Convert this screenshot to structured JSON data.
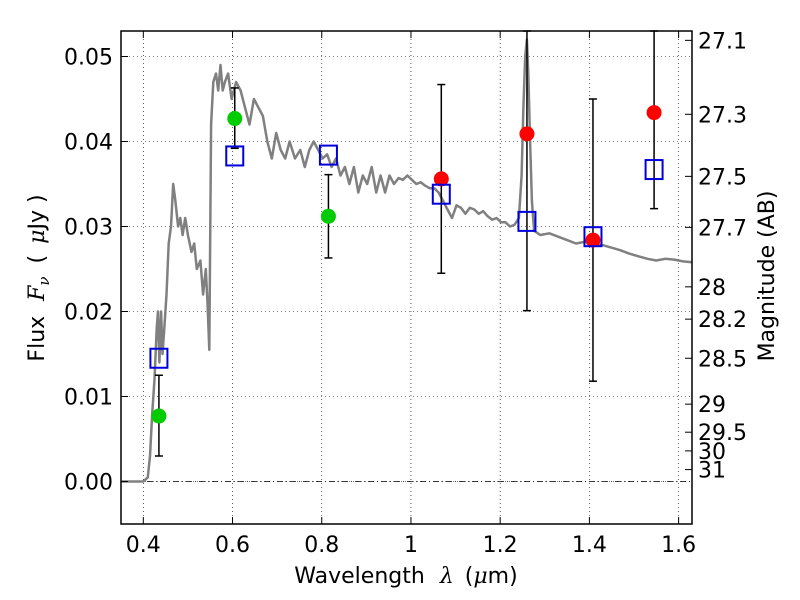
{
  "chart_data": {
    "type": "scatter",
    "xlabel": {
      "prefix": "Wavelength",
      "symbol": "λ",
      "unit_open": "(",
      "unit_mu": "μ",
      "unit_rest": "m)"
    },
    "ylabel": {
      "prefix": "Flux",
      "symbol": "F",
      "subscript": "ν",
      "unit_open": "(",
      "unit_mu": "μ",
      "unit_rest": "Jy )"
    },
    "y2label": "Magnitude (AB)",
    "xlim": [
      0.35,
      1.63
    ],
    "ylim": [
      -0.005,
      0.053
    ],
    "grid": true,
    "x_ticks": [
      {
        "value": 0.4,
        "label": "0.4"
      },
      {
        "value": 0.6,
        "label": "0.6"
      },
      {
        "value": 0.8,
        "label": "0.8"
      },
      {
        "value": 1.0,
        "label": "1"
      },
      {
        "value": 1.2,
        "label": "1.2"
      },
      {
        "value": 1.4,
        "label": "1.4"
      },
      {
        "value": 1.6,
        "label": "1.6"
      }
    ],
    "y_ticks": [
      {
        "value": 0.0,
        "label": "0.00"
      },
      {
        "value": 0.01,
        "label": "0.01"
      },
      {
        "value": 0.02,
        "label": "0.02"
      },
      {
        "value": 0.03,
        "label": "0.03"
      },
      {
        "value": 0.04,
        "label": "0.04"
      },
      {
        "value": 0.05,
        "label": "0.05"
      }
    ],
    "mag_ticks": [
      {
        "flux": 0.0519,
        "label": "27.1"
      },
      {
        "flux": 0.0432,
        "label": "27.3"
      },
      {
        "flux": 0.0359,
        "label": "27.5"
      },
      {
        "flux": 0.0299,
        "label": "27.7"
      },
      {
        "flux": 0.0229,
        "label": "28"
      },
      {
        "flux": 0.0191,
        "label": "28.2"
      },
      {
        "flux": 0.0145,
        "label": "28.5"
      },
      {
        "flux": 0.0091,
        "label": "29"
      },
      {
        "flux": 0.0058,
        "label": "29.5"
      },
      {
        "flux": 0.0036,
        "label": "30"
      },
      {
        "flux": 0.0014,
        "label": "31"
      }
    ],
    "zero_line": 0.0,
    "sed_model": {
      "color": "#808080",
      "points": [
        [
          0.35,
          0.0
        ],
        [
          0.4,
          0.0
        ],
        [
          0.41,
          0.0005
        ],
        [
          0.415,
          0.003
        ],
        [
          0.42,
          0.008
        ],
        [
          0.425,
          0.012
        ],
        [
          0.43,
          0.018
        ],
        [
          0.433,
          0.02
        ],
        [
          0.436,
          0.014
        ],
        [
          0.44,
          0.02
        ],
        [
          0.443,
          0.015
        ],
        [
          0.447,
          0.018
        ],
        [
          0.452,
          0.022
        ],
        [
          0.457,
          0.028
        ],
        [
          0.462,
          0.03
        ],
        [
          0.467,
          0.035
        ],
        [
          0.472,
          0.033
        ],
        [
          0.478,
          0.03
        ],
        [
          0.483,
          0.031
        ],
        [
          0.488,
          0.029
        ],
        [
          0.494,
          0.031
        ],
        [
          0.5,
          0.029
        ],
        [
          0.508,
          0.027
        ],
        [
          0.514,
          0.028
        ],
        [
          0.52,
          0.025
        ],
        [
          0.528,
          0.026
        ],
        [
          0.534,
          0.022
        ],
        [
          0.54,
          0.025
        ],
        [
          0.544,
          0.021
        ],
        [
          0.548,
          0.0155
        ],
        [
          0.552,
          0.042
        ],
        [
          0.557,
          0.047
        ],
        [
          0.563,
          0.048
        ],
        [
          0.568,
          0.046
        ],
        [
          0.573,
          0.049
        ],
        [
          0.578,
          0.046
        ],
        [
          0.583,
          0.047
        ],
        [
          0.59,
          0.048
        ],
        [
          0.598,
          0.045
        ],
        [
          0.608,
          0.047
        ],
        [
          0.618,
          0.046
        ],
        [
          0.628,
          0.044
        ],
        [
          0.638,
          0.042
        ],
        [
          0.648,
          0.045
        ],
        [
          0.658,
          0.044
        ],
        [
          0.668,
          0.043
        ],
        [
          0.678,
          0.04
        ],
        [
          0.688,
          0.038
        ],
        [
          0.698,
          0.041
        ],
        [
          0.708,
          0.039
        ],
        [
          0.718,
          0.038
        ],
        [
          0.728,
          0.04
        ],
        [
          0.74,
          0.038
        ],
        [
          0.752,
          0.039
        ],
        [
          0.762,
          0.037
        ],
        [
          0.772,
          0.039
        ],
        [
          0.782,
          0.04
        ],
        [
          0.792,
          0.039
        ],
        [
          0.802,
          0.038
        ],
        [
          0.812,
          0.0385
        ],
        [
          0.822,
          0.037
        ],
        [
          0.832,
          0.038
        ],
        [
          0.842,
          0.036
        ],
        [
          0.852,
          0.037
        ],
        [
          0.862,
          0.035
        ],
        [
          0.872,
          0.037
        ],
        [
          0.882,
          0.034
        ],
        [
          0.892,
          0.036
        ],
        [
          0.902,
          0.035
        ],
        [
          0.912,
          0.037
        ],
        [
          0.922,
          0.034
        ],
        [
          0.932,
          0.036
        ],
        [
          0.942,
          0.034
        ],
        [
          0.952,
          0.036
        ],
        [
          0.962,
          0.035
        ],
        [
          0.972,
          0.0357
        ],
        [
          0.982,
          0.0355
        ],
        [
          0.992,
          0.036
        ],
        [
          1.002,
          0.0355
        ],
        [
          1.012,
          0.035
        ],
        [
          1.022,
          0.0352
        ],
        [
          1.032,
          0.0348
        ],
        [
          1.042,
          0.0345
        ],
        [
          1.052,
          0.0345
        ],
        [
          1.062,
          0.034
        ],
        [
          1.072,
          0.033
        ],
        [
          1.082,
          0.032
        ],
        [
          1.092,
          0.031
        ],
        [
          1.102,
          0.0325
        ],
        [
          1.112,
          0.0322
        ],
        [
          1.122,
          0.0315
        ],
        [
          1.132,
          0.0322
        ],
        [
          1.142,
          0.032
        ],
        [
          1.152,
          0.0315
        ],
        [
          1.162,
          0.0318
        ],
        [
          1.172,
          0.0312
        ],
        [
          1.182,
          0.0308
        ],
        [
          1.192,
          0.031
        ],
        [
          1.202,
          0.0305
        ],
        [
          1.212,
          0.0305
        ],
        [
          1.222,
          0.03
        ],
        [
          1.232,
          0.0302
        ],
        [
          1.242,
          0.031
        ],
        [
          1.248,
          0.036
        ],
        [
          1.252,
          0.044
        ],
        [
          1.256,
          0.05
        ],
        [
          1.26,
          0.052
        ],
        [
          1.263,
          0.048
        ],
        [
          1.267,
          0.04
        ],
        [
          1.271,
          0.033
        ],
        [
          1.276,
          0.0295
        ],
        [
          1.29,
          0.029
        ],
        [
          1.31,
          0.0292
        ],
        [
          1.33,
          0.0288
        ],
        [
          1.35,
          0.0284
        ],
        [
          1.37,
          0.028
        ],
        [
          1.39,
          0.0282
        ],
        [
          1.41,
          0.028
        ],
        [
          1.43,
          0.0278
        ],
        [
          1.45,
          0.0275
        ],
        [
          1.47,
          0.0272
        ],
        [
          1.49,
          0.0268
        ],
        [
          1.51,
          0.0265
        ],
        [
          1.53,
          0.0262
        ],
        [
          1.55,
          0.026
        ],
        [
          1.57,
          0.0262
        ],
        [
          1.59,
          0.0261
        ],
        [
          1.61,
          0.0259
        ],
        [
          1.63,
          0.0258
        ]
      ]
    },
    "series": [
      {
        "marker": "circle",
        "color": "#00cc00",
        "points": [
          {
            "x": 0.435,
            "y": 0.0077,
            "err": [
              0.003,
              0.0125
            ]
          },
          {
            "x": 0.605,
            "y": 0.0427,
            "err": [
              0.0392,
              0.0463
            ]
          },
          {
            "x": 0.815,
            "y": 0.0312,
            "err": [
              0.0263,
              0.0361
            ]
          }
        ]
      },
      {
        "marker": "circle",
        "color": "#ff0000",
        "points": [
          {
            "x": 1.068,
            "y": 0.0356,
            "err": [
              0.0245,
              0.0467
            ]
          },
          {
            "x": 1.26,
            "y": 0.0409,
            "err": [
              0.0201,
              0.053
            ]
          },
          {
            "x": 1.408,
            "y": 0.0284,
            "err": [
              0.0118,
              0.045
            ]
          },
          {
            "x": 1.545,
            "y": 0.0434,
            "err": [
              0.0321,
              0.053
            ]
          }
        ]
      },
      {
        "marker": "square",
        "color": "#0000dd",
        "points": [
          {
            "x": 0.435,
            "y": 0.0145
          },
          {
            "x": 0.605,
            "y": 0.0383
          },
          {
            "x": 0.815,
            "y": 0.0384
          },
          {
            "x": 1.068,
            "y": 0.0338
          },
          {
            "x": 1.26,
            "y": 0.0306
          },
          {
            "x": 1.408,
            "y": 0.0288
          },
          {
            "x": 1.545,
            "y": 0.0367
          }
        ]
      }
    ]
  }
}
